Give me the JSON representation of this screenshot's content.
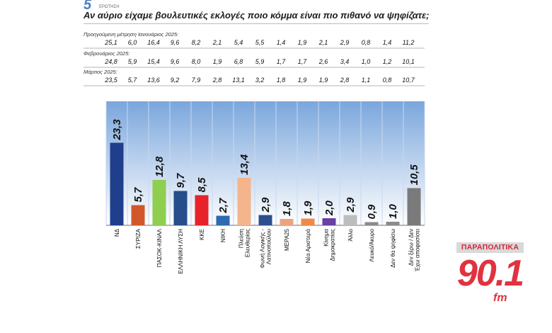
{
  "header": {
    "badge": "5",
    "badge_sub": "ΕΡΩΤΗΣΗ",
    "title": "Αν αύριο είχαμε βουλευτικές εκλογές ποιο κόμμα είναι πιο πιθανό να ψηφίζατε;"
  },
  "previous": [
    {
      "label": "Προηγούμενη μέτρηση Ιανουάριος 2025:",
      "values": [
        "25,1",
        "6,0",
        "16,4",
        "9,6",
        "8,2",
        "2,1",
        "5,4",
        "5,5",
        "1,4",
        "1,9",
        "2,1",
        "2,9",
        "0,8",
        "1,4",
        "11,2"
      ]
    },
    {
      "label": "Φεβρουάριος 2025:",
      "values": [
        "24,8",
        "5,9",
        "15,4",
        "9,6",
        "8,0",
        "1,9",
        "6,8",
        "5,9",
        "1,7",
        "1,7",
        "2,6",
        "3,4",
        "1,0",
        "1,2",
        "10,1"
      ]
    },
    {
      "label": "Μάρτιος 2025:",
      "values": [
        "23,5",
        "5,7",
        "13,6",
        "9,2",
        "7,9",
        "2,8",
        "13,1",
        "3,2",
        "1,8",
        "1,9",
        "1,9",
        "2,8",
        "1,1",
        "0,8",
        "10,7"
      ]
    }
  ],
  "chart_data": {
    "type": "bar",
    "title": "Αν αύριο είχαμε βουλευτικές εκλογές ποιο κόμμα είναι πιο πιθανό να ψηφίζατε;",
    "categories": [
      "ΝΔ",
      "ΣΥΡΙΖΑ",
      "ΠΑΣΟΚ-ΚΙΝΑΛ",
      "ΕΛΛΗΝΙΚΗ ΛΥΣΗ",
      "ΚΚΕ",
      "ΝΙΚΗ",
      "Πλεύση Ελευθερίας",
      "Φωνή Λογικής - Λατινοπούλου",
      "ΜΕΡΑ25",
      "Νέα Αριστερά",
      "Κίνημα Δημοκρατίας",
      "Άλλο",
      "Λευκό/Άκυρο",
      "Δεν θα ψηφίσω",
      "Δεν ξέρω / Δεν Έχω αποφασίσει"
    ],
    "label_lines": [
      [
        "ΝΔ"
      ],
      [
        "ΣΥΡΙΖΑ"
      ],
      [
        "ΠΑΣΟΚ-ΚΙΝΑΛ"
      ],
      [
        "ΕΛΛΗΝΙΚΗ ΛΥΣΗ"
      ],
      [
        "ΚΚΕ"
      ],
      [
        "ΝΙΚΗ"
      ],
      [
        "Πλεύση",
        "Ελευθερίας"
      ],
      [
        "Φωνή Λογικής -",
        "Λατινοπούλου"
      ],
      [
        "ΜΕΡΑ25"
      ],
      [
        "Νέα Αριστερά"
      ],
      [
        "Κίνημα",
        "Δημοκρατίας"
      ],
      [
        "Άλλο"
      ],
      [
        "Λευκό/Άκυρο"
      ],
      [
        "Δεν θα ψηφίσω"
      ],
      [
        "Δεν ξέρω / Δεν",
        "Έχω αποφασίσει"
      ]
    ],
    "values": [
      23.3,
      5.7,
      12.8,
      9.7,
      8.5,
      2.7,
      13.4,
      2.9,
      1.8,
      1.9,
      2.0,
      2.9,
      0.9,
      1.0,
      10.5
    ],
    "value_labels": [
      "23,3",
      "5,7",
      "12,8",
      "9,7",
      "8,5",
      "2,7",
      "13,4",
      "2,9",
      "1,8",
      "1,9",
      "2,0",
      "2,9",
      "0,9",
      "1,0",
      "10,5"
    ],
    "colors": [
      "#1f3f8c",
      "#d2562a",
      "#8fce4e",
      "#254e8a",
      "#e8222a",
      "#2e69b2",
      "#f4b48c",
      "#2c4f8f",
      "#f0a27e",
      "#f08a46",
      "#6b3fa4",
      "#bdbdbd",
      "#8a8a8a",
      "#8a8a8a",
      "#7a7a7a"
    ],
    "ylim": [
      0,
      30
    ],
    "grid": false,
    "legend": "none"
  },
  "watermark": {
    "top": "ΠΑΡΑΠΟΛΙΤΙΚΑ",
    "number": "90.1",
    "suffix": "fm"
  }
}
